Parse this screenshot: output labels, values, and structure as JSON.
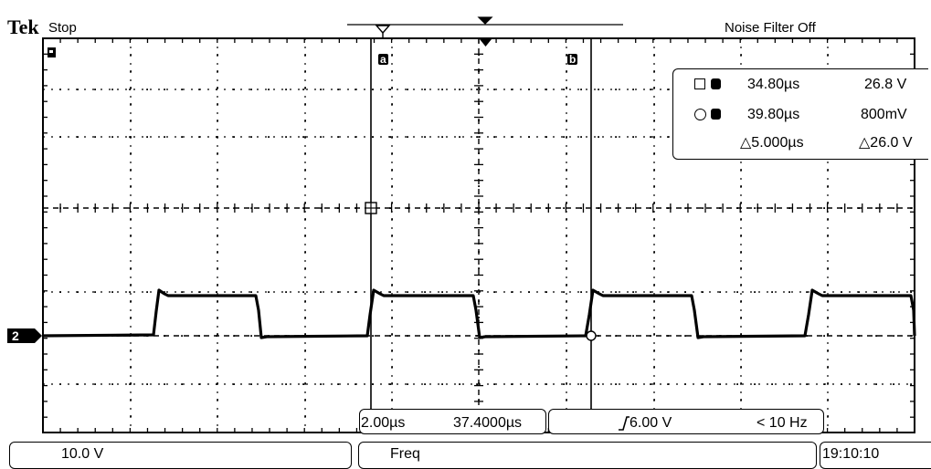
{
  "header": {
    "brand": "Tek",
    "run_state": "Stop",
    "noise_filter": "Noise Filter Off"
  },
  "markers": {
    "channel_ground": "2",
    "cursor_a": "a",
    "cursor_b": "b"
  },
  "cursor_readout": {
    "row_a": {
      "time": "34.80µs",
      "value": "26.8 V"
    },
    "row_b": {
      "time": "39.80µs",
      "value": "800mV"
    },
    "row_delta": {
      "time": "△5.000µs",
      "value": "△26.0 V"
    }
  },
  "bottom_bar": {
    "timebase": "2.00µs",
    "horizontal_position": "37.4000µs",
    "trigger_level": "6.00 V",
    "trigger_frequency": "< 10 Hz",
    "channel_scale": "10.0 V",
    "measurement": "Freq",
    "clock": "19:10:10"
  },
  "colors": {
    "trace": "#000000",
    "background": "#ffffff",
    "grid": "#000000"
  }
}
